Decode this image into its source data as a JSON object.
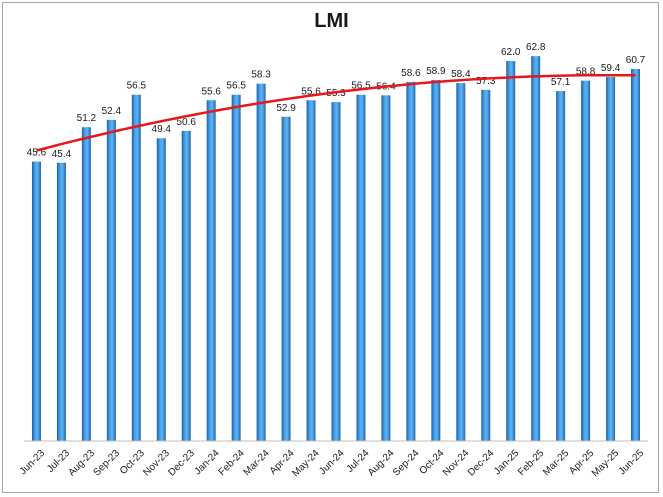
{
  "chart_data": {
    "type": "bar",
    "title": "LMI",
    "categories": [
      "Jun-23",
      "Jul-23",
      "Aug-23",
      "Sep-23",
      "Oct-23",
      "Nov-23",
      "Dec-23",
      "Jan-24",
      "Feb-24",
      "Mar-24",
      "Apr-24",
      "May-24",
      "Jun-24",
      "Jul-24",
      "Aug-24",
      "Sep-24",
      "Oct-24",
      "Nov-24",
      "Dec-24",
      "Jan-25",
      "Feb-25",
      "Mar-25",
      "Apr-25",
      "May-25",
      "Jun-25"
    ],
    "values": [
      45.6,
      45.4,
      51.2,
      52.4,
      56.5,
      49.4,
      50.6,
      55.6,
      56.5,
      58.3,
      52.9,
      55.6,
      55.3,
      56.5,
      56.4,
      58.6,
      58.9,
      58.4,
      57.3,
      62.0,
      62.8,
      57.1,
      58.8,
      59.4,
      60.7
    ],
    "data_labels": [
      "45.6",
      "45.4",
      "51.2",
      "52.4",
      "56.5",
      "49.4",
      "50.6",
      "55.6",
      "56.5",
      "58.3",
      "52.9",
      "55.6",
      "55.3",
      "56.5",
      "56.4",
      "58.6",
      "58.9",
      "58.4",
      "57.3",
      "62.0",
      "62.8",
      "57.1",
      "58.8",
      "59.4",
      "60.7"
    ],
    "trendline": {
      "type": "polynomial",
      "color": "#e8171b"
    },
    "ylim": [
      0,
      70
    ],
    "grid": false,
    "legend": "none",
    "bar_color": "#3a8fdc"
  }
}
